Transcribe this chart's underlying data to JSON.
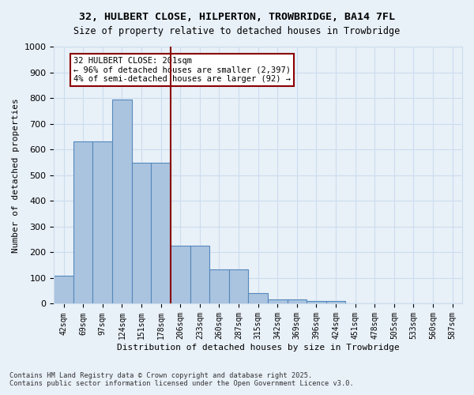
{
  "title_line1": "32, HULBERT CLOSE, HILPERTON, TROWBRIDGE, BA14 7FL",
  "title_line2": "Size of property relative to detached houses in Trowbridge",
  "xlabel": "Distribution of detached houses by size in Trowbridge",
  "ylabel": "Number of detached properties",
  "categories": [
    "42sqm",
    "69sqm",
    "97sqm",
    "124sqm",
    "151sqm",
    "178sqm",
    "206sqm",
    "233sqm",
    "260sqm",
    "287sqm",
    "315sqm",
    "342sqm",
    "369sqm",
    "396sqm",
    "424sqm",
    "451sqm",
    "478sqm",
    "505sqm",
    "533sqm",
    "560sqm",
    "587sqm"
  ],
  "values": [
    108,
    630,
    630,
    795,
    548,
    548,
    225,
    225,
    135,
    135,
    42,
    17,
    17,
    10,
    10,
    0,
    0,
    0,
    0,
    0,
    0
  ],
  "bar_color": "#aac4e0",
  "bar_edge_color": "#5588bb",
  "vline_x": 5,
  "vline_color": "#8b0000",
  "annotation_text": "32 HULBERT CLOSE: 201sqm\n← 96% of detached houses are smaller (2,397)\n4% of semi-detached houses are larger (92) →",
  "annotation_box_color": "#8b0000",
  "annotation_face_color": "white",
  "ylim": [
    0,
    1000
  ],
  "yticks": [
    0,
    100,
    200,
    300,
    400,
    500,
    600,
    700,
    800,
    900,
    1000
  ],
  "grid_color": "#ccddee",
  "bg_color": "#e8f0f8",
  "footer_line1": "Contains HM Land Registry data © Crown copyright and database right 2025.",
  "footer_line2": "Contains public sector information licensed under the Open Government Licence v3.0."
}
